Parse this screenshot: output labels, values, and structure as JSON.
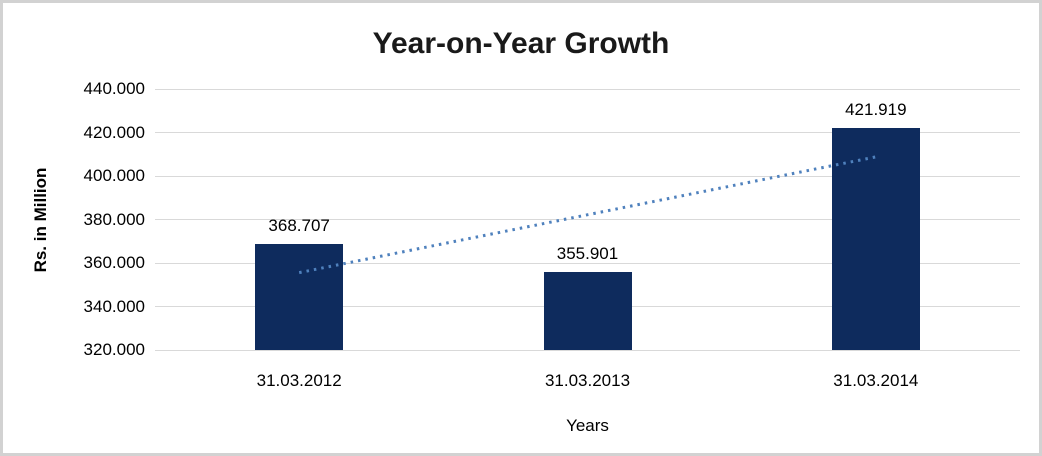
{
  "window": {
    "background_color": "#ffffff",
    "border_color": "#d2d2d2"
  },
  "chart_data": {
    "type": "bar",
    "title": "Year-on-Year Growth",
    "xlabel": "Years",
    "ylabel": "Rs. in Million",
    "categories": [
      "31.03.2012",
      "31.03.2013",
      "31.03.2014"
    ],
    "values": [
      368.707,
      355.901,
      421.919
    ],
    "value_labels": [
      "368.707",
      "355.901",
      "421.919"
    ],
    "ylim": [
      320,
      440
    ],
    "ytick_step": 20,
    "ytick_labels": [
      "440.000",
      "420.000",
      "400.000",
      "380.000",
      "360.000",
      "340.000",
      "320.000"
    ],
    "grid": true,
    "legend": false,
    "bar_color": "#0e2b5d",
    "gridline_color": "#d9d9d9",
    "trendline": {
      "type": "linear",
      "style": "dotted",
      "color": "#4f81bd"
    }
  }
}
